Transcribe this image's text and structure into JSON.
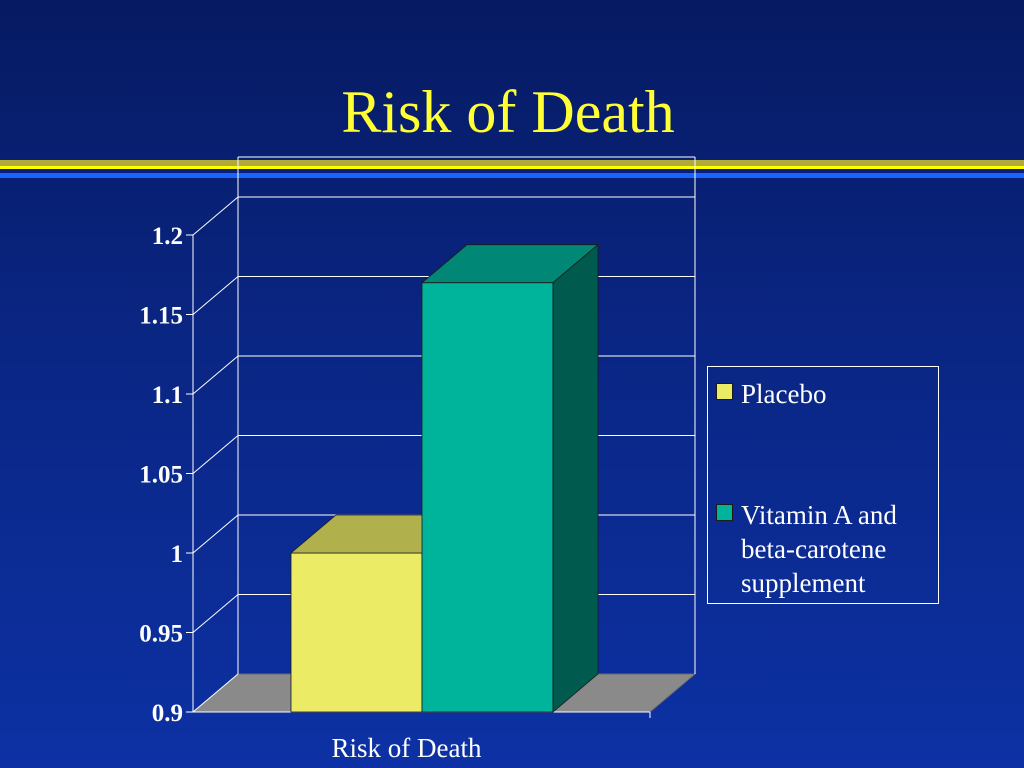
{
  "slide": {
    "title": "Risk of Death"
  },
  "chart_data": {
    "type": "bar",
    "title": "",
    "categories": [
      "Risk of Death"
    ],
    "xlabel": "Risk of Death",
    "ylabel": "",
    "ylim": [
      0.9,
      1.2
    ],
    "yticks": [
      "0.9",
      "0.95",
      "1",
      "1.05",
      "1.1",
      "1.15",
      "1.2"
    ],
    "series": [
      {
        "name": "Placebo",
        "values": [
          1.0
        ],
        "color": "#ebeb66"
      },
      {
        "name": "Vitamin A and beta-carotene supplement",
        "values": [
          1.17
        ],
        "color": "#00b49c"
      }
    ],
    "grid": true,
    "legend_position": "right",
    "style": "3d"
  }
}
